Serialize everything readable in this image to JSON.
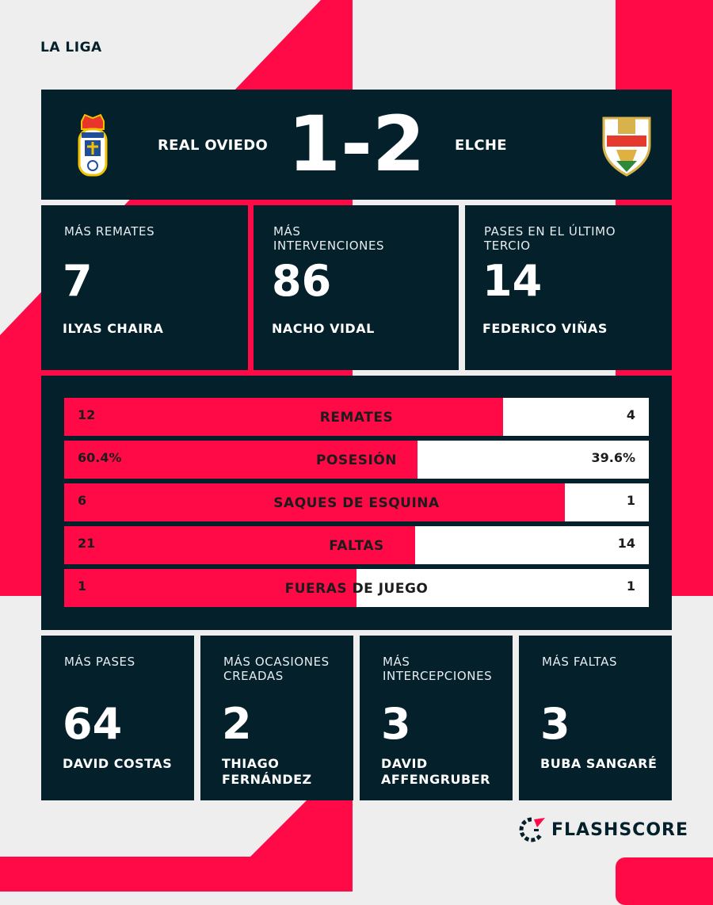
{
  "league": "LA LIGA",
  "match": {
    "home": "REAL OVIEDO",
    "away": "ELCHE",
    "score": "1-2",
    "home_crest": "real-oviedo-crest",
    "away_crest": "elche-crest"
  },
  "top_stats": [
    {
      "label": "MÁS REMATES",
      "value": "7",
      "player": "ILYAS CHAIRA"
    },
    {
      "label": "MÁS INTERVENCIONES",
      "value": "86",
      "player": "NACHO VIDAL"
    },
    {
      "label": "PASES EN EL ÚLTIMO TERCIO",
      "value": "14",
      "player": "FEDERICO VIÑAS"
    }
  ],
  "bars": [
    {
      "name": "REMATES",
      "home": "12",
      "away": "4",
      "home_share": 0.75
    },
    {
      "name": "POSESIÓN",
      "home": "60.4%",
      "away": "39.6%",
      "home_share": 0.604
    },
    {
      "name": "SAQUES DE ESQUINA",
      "home": "6",
      "away": "1",
      "home_share": 0.857
    },
    {
      "name": "FALTAS",
      "home": "21",
      "away": "14",
      "home_share": 0.6
    },
    {
      "name": "FUERAS DE JUEGO",
      "home": "1",
      "away": "1",
      "home_share": 0.5
    }
  ],
  "bottom_stats": [
    {
      "label": "MÁS PASES",
      "value": "64",
      "player": "DAVID COSTAS"
    },
    {
      "label": "MÁS OCASIONES CREADAS",
      "value": "2",
      "player": "THIAGO FERNÁNDEZ"
    },
    {
      "label": "MÁS INTERCEPCIONES",
      "value": "3",
      "player": "DAVID AFFENGRUBER"
    },
    {
      "label": "MÁS FALTAS",
      "value": "3",
      "player": "BUBA SANGARÉ"
    }
  ],
  "brand": "FLASHSCORE",
  "colors": {
    "dark": "#03202b",
    "red": "#ff0a47",
    "background": "#eeeeee"
  }
}
